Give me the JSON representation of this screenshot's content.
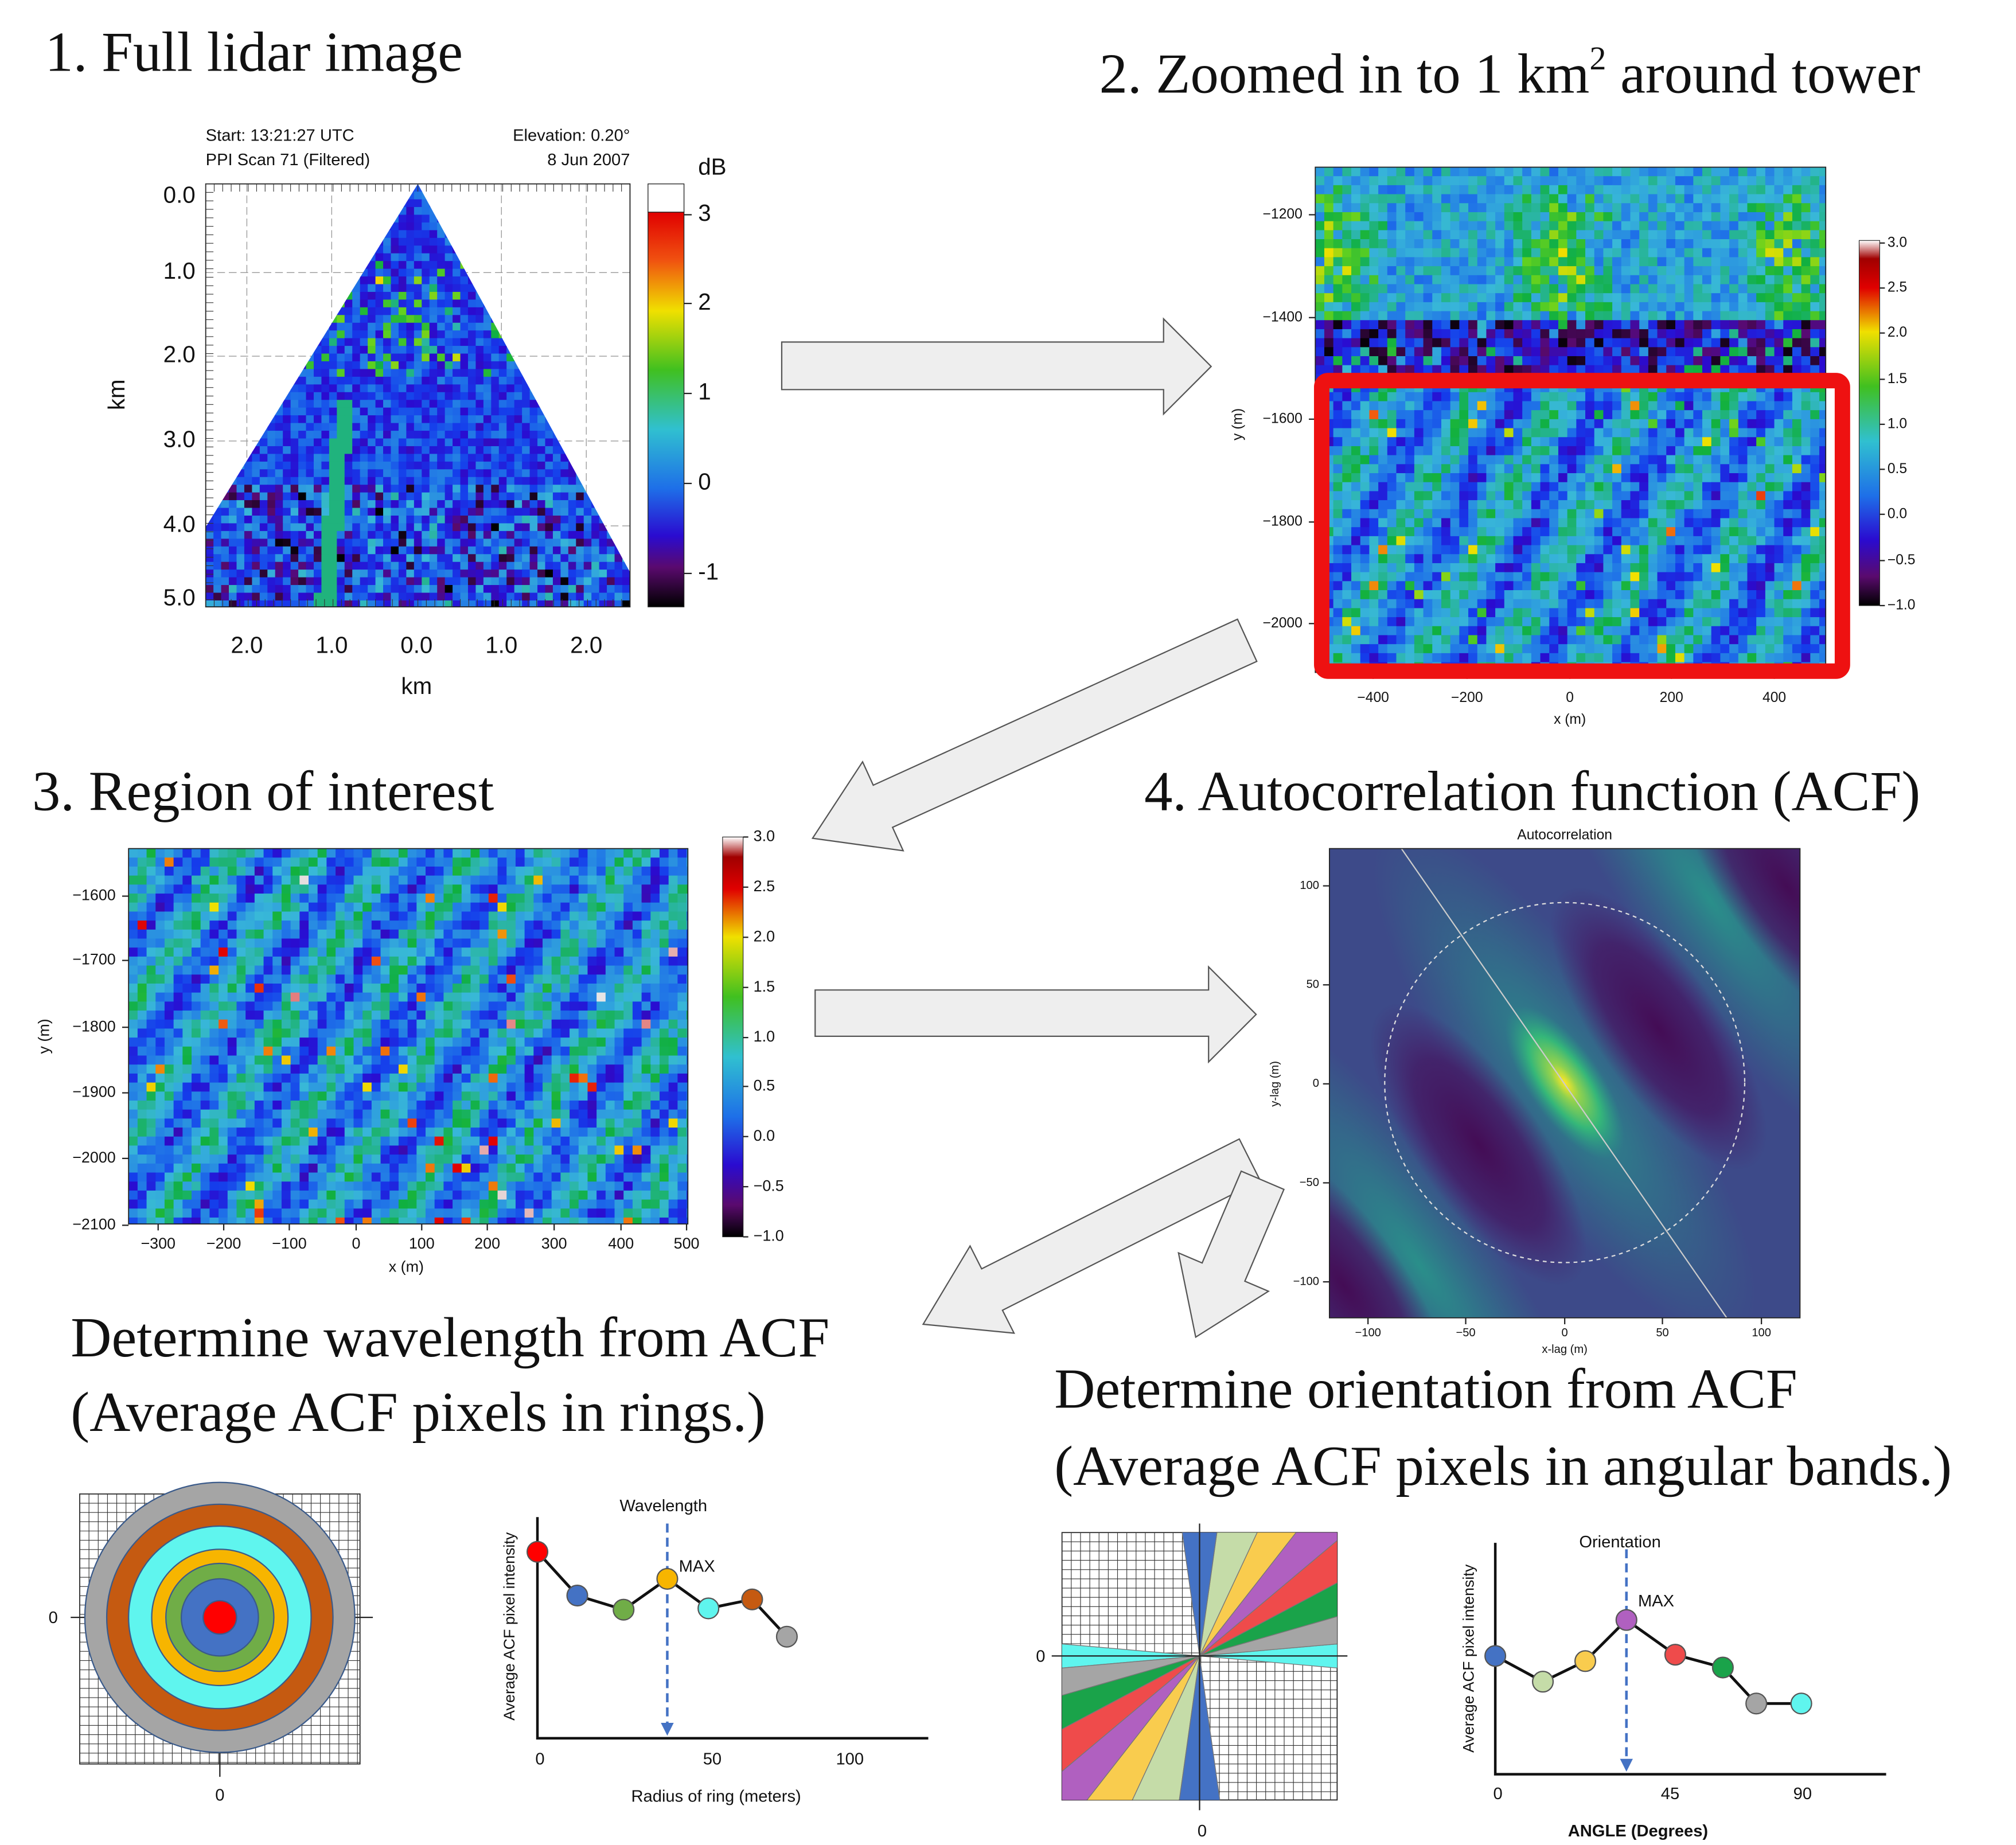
{
  "panel1": {
    "title": "1.  Full lidar image",
    "start": "Start: 13:21:27 UTC",
    "scan": "PPI Scan 71 (Filtered)",
    "elevation": "Elevation: 0.20°",
    "date": "8 Jun 2007",
    "y_axis_label": "km",
    "y_ticks": [
      "0.0",
      "1.0",
      "2.0",
      "3.0",
      "4.0",
      "5.0"
    ],
    "x_axis_label": "km",
    "x_ticks": [
      "2.0",
      "1.0",
      "0.0",
      "1.0",
      "2.0"
    ],
    "colorbar_label": "dB",
    "colorbar_ticks": [
      "3",
      "2",
      "1",
      "0",
      "-1"
    ]
  },
  "panel2": {
    "title": "2. Zoomed in to 1 km",
    "title_superscript": "2",
    "title_end": " around tower",
    "y_axis_label": "y (m)",
    "y_ticks": [
      "−1200",
      "−1400",
      "−1600",
      "−1800",
      "−2000"
    ],
    "x_axis_label": "x (m)",
    "x_ticks": [
      "−400",
      "−200",
      "0",
      "200",
      "400"
    ],
    "colorbar_ticks": [
      "3.0",
      "2.5",
      "2.0",
      "1.5",
      "1.0",
      "0.5",
      "0.0",
      "−0.5",
      "−1.0"
    ]
  },
  "panel3": {
    "title": "3. Region of interest",
    "y_axis_label": "y (m)",
    "y_ticks": [
      "−1600",
      "−1700",
      "−1800",
      "−1900",
      "−2000",
      "−2100"
    ],
    "x_axis_label": "x (m)",
    "x_ticks": [
      "−300",
      "−200",
      "−100",
      "0",
      "100",
      "200",
      "300",
      "400",
      "500"
    ],
    "colorbar_ticks": [
      "3.0",
      "2.5",
      "2.0",
      "1.5",
      "1.0",
      "0.5",
      "0.0",
      "−0.5",
      "−1.0"
    ]
  },
  "panel4": {
    "title": "4. Autocorrelation function (ACF)",
    "plot_title": "Autocorrelation",
    "y_axis_label": "y-lag (m)",
    "y_ticks": [
      "100",
      "50",
      "0",
      "−50",
      "−100"
    ],
    "x_axis_label": "x-lag (m)",
    "x_ticks": [
      "−100",
      "−50",
      "0",
      "50",
      "100"
    ]
  },
  "panel5": {
    "title_lines": [
      "Determine wavelength from ACF",
      "(Average ACF pixels in rings.)"
    ],
    "diagram_y_tick": "0",
    "diagram_x_tick": "0",
    "plot_annotation": "Wavelength",
    "max_label": "MAX",
    "y_axis_label": "Average ACF pixel intensity",
    "x_ticks": [
      "0",
      "50",
      "100"
    ],
    "x_axis_label": "Radius of ring (meters)"
  },
  "panel6": {
    "title_lines": [
      "Determine orientation from ACF",
      "(Average ACF pixels in angular bands.)"
    ],
    "diagram_y_tick": "0",
    "diagram_x_tick": "0",
    "plot_annotation": "Orientation",
    "max_label": "MAX",
    "y_axis_label": "Average ACF pixel intensity",
    "x_ticks": [
      "0",
      "45",
      "90"
    ],
    "x_axis_label": "ANGLE (Degrees)"
  }
}
